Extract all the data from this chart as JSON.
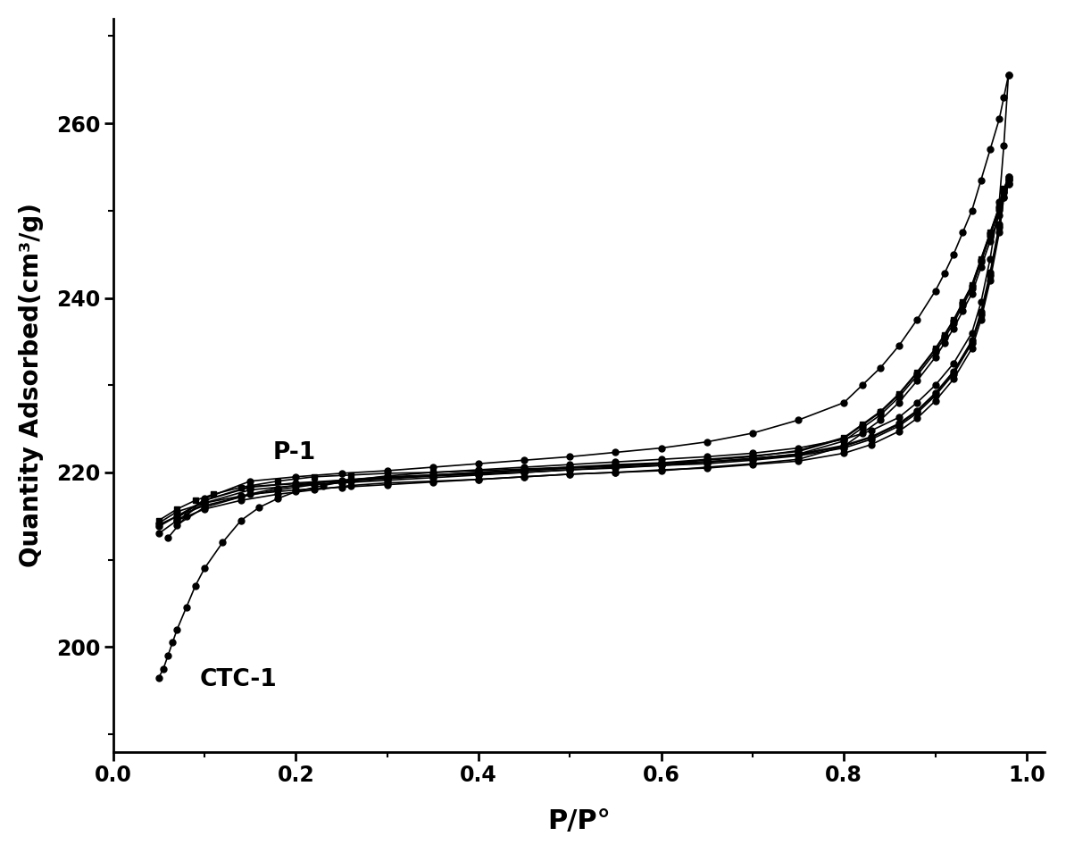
{
  "title": "",
  "xlabel": "P/P°",
  "ylabel": "Quantity Adsorbed(cm³/g)",
  "xlim": [
    0.0,
    1.02
  ],
  "ylim": [
    188,
    272
  ],
  "yticks": [
    200,
    220,
    240,
    260
  ],
  "xticks": [
    0.0,
    0.2,
    0.4,
    0.6,
    0.8,
    1.0
  ],
  "background_color": "#ffffff",
  "line_color": "#000000",
  "label_P1": "P-1",
  "label_CTC1": "CTC-1",
  "P1_x": [
    0.05,
    0.07,
    0.09,
    0.11,
    0.14,
    0.18,
    0.22,
    0.26,
    0.3,
    0.35,
    0.4,
    0.45,
    0.5,
    0.55,
    0.6,
    0.65,
    0.7,
    0.75,
    0.8,
    0.83,
    0.86,
    0.88,
    0.9,
    0.92,
    0.94,
    0.95,
    0.96,
    0.97,
    0.975,
    0.98
  ],
  "P1_y": [
    214.5,
    215.8,
    216.8,
    217.5,
    218.3,
    219.0,
    219.5,
    219.7,
    219.9,
    220.0,
    220.2,
    220.4,
    220.6,
    220.8,
    221.0,
    221.2,
    221.5,
    222.0,
    223.0,
    224.0,
    225.5,
    227.0,
    229.0,
    231.5,
    235.0,
    238.0,
    242.5,
    248.0,
    252.0,
    253.5
  ],
  "P1_des_x": [
    0.98,
    0.975,
    0.97,
    0.96,
    0.95,
    0.94,
    0.93,
    0.92,
    0.91,
    0.9,
    0.88,
    0.86,
    0.84,
    0.82,
    0.8,
    0.75,
    0.7,
    0.65,
    0.6,
    0.55,
    0.5,
    0.45,
    0.4,
    0.35,
    0.3,
    0.25,
    0.2,
    0.15,
    0.1,
    0.07,
    0.05
  ],
  "P1_des_y": [
    253.5,
    252.5,
    250.5,
    247.5,
    244.5,
    241.5,
    239.5,
    237.5,
    235.8,
    234.2,
    231.5,
    229.0,
    227.0,
    225.5,
    224.0,
    222.5,
    221.8,
    221.4,
    221.0,
    220.8,
    220.5,
    220.2,
    219.9,
    219.6,
    219.3,
    219.0,
    218.7,
    218.4,
    216.8,
    215.0,
    214.0
  ],
  "CTC1_x": [
    0.05,
    0.055,
    0.06,
    0.065,
    0.07,
    0.08,
    0.09,
    0.1,
    0.12,
    0.14,
    0.16,
    0.18,
    0.2,
    0.23,
    0.26,
    0.3,
    0.35,
    0.4,
    0.45,
    0.5,
    0.55,
    0.6,
    0.65,
    0.7,
    0.75,
    0.8,
    0.83,
    0.86,
    0.88,
    0.9,
    0.92,
    0.94,
    0.95,
    0.96,
    0.97,
    0.975,
    0.98
  ],
  "CTC1_y": [
    196.5,
    197.5,
    199.0,
    200.5,
    202.0,
    204.5,
    207.0,
    209.0,
    212.0,
    214.5,
    216.0,
    217.0,
    217.8,
    218.5,
    219.1,
    219.6,
    220.0,
    220.3,
    220.6,
    220.9,
    221.2,
    221.5,
    221.8,
    222.2,
    222.8,
    223.8,
    224.8,
    226.3,
    228.0,
    230.0,
    232.5,
    236.0,
    239.5,
    244.5,
    251.0,
    257.5,
    265.5
  ],
  "CTC1_des_x": [
    0.98,
    0.975,
    0.97,
    0.96,
    0.95,
    0.94,
    0.93,
    0.92,
    0.91,
    0.9,
    0.88,
    0.86,
    0.84,
    0.82,
    0.8,
    0.75,
    0.7,
    0.65,
    0.6,
    0.55,
    0.5,
    0.45,
    0.4,
    0.35,
    0.3,
    0.25,
    0.2,
    0.15,
    0.1,
    0.08,
    0.06
  ],
  "CTC1_des_y": [
    265.5,
    263.0,
    260.5,
    257.0,
    253.5,
    250.0,
    247.5,
    245.0,
    242.8,
    240.8,
    237.5,
    234.5,
    232.0,
    230.0,
    228.0,
    226.0,
    224.5,
    223.5,
    222.8,
    222.3,
    221.8,
    221.4,
    221.0,
    220.6,
    220.2,
    219.9,
    219.5,
    219.0,
    217.0,
    215.0,
    212.5
  ],
  "mid_curves": [
    {
      "x": [
        0.05,
        0.07,
        0.1,
        0.14,
        0.18,
        0.22,
        0.26,
        0.3,
        0.35,
        0.4,
        0.45,
        0.5,
        0.55,
        0.6,
        0.65,
        0.7,
        0.75,
        0.8,
        0.83,
        0.86,
        0.88,
        0.9,
        0.92,
        0.94,
        0.95,
        0.96,
        0.97,
        0.975,
        0.98
      ],
      "y": [
        213.0,
        214.5,
        215.8,
        216.8,
        217.5,
        218.0,
        218.5,
        218.8,
        219.0,
        219.2,
        219.5,
        219.8,
        220.0,
        220.3,
        220.5,
        220.9,
        221.3,
        222.2,
        223.2,
        224.7,
        226.2,
        228.2,
        230.7,
        234.2,
        237.5,
        242.0,
        247.5,
        251.5,
        253.0
      ],
      "des_x": [
        0.98,
        0.975,
        0.97,
        0.96,
        0.95,
        0.94,
        0.93,
        0.92,
        0.91,
        0.9,
        0.88,
        0.86,
        0.84,
        0.82,
        0.8,
        0.75,
        0.7,
        0.65,
        0.6,
        0.55,
        0.5,
        0.45,
        0.4,
        0.35,
        0.3,
        0.25,
        0.2,
        0.15,
        0.1,
        0.07
      ],
      "des_y": [
        253.0,
        251.5,
        249.5,
        246.5,
        243.5,
        240.5,
        238.5,
        236.5,
        234.8,
        233.2,
        230.5,
        228.0,
        226.0,
        224.5,
        223.0,
        221.5,
        221.0,
        220.6,
        220.2,
        220.0,
        219.8,
        219.5,
        219.2,
        218.9,
        218.6,
        218.3,
        218.0,
        217.5,
        216.0,
        214.0
      ]
    },
    {
      "x": [
        0.05,
        0.07,
        0.1,
        0.14,
        0.18,
        0.22,
        0.26,
        0.3,
        0.35,
        0.4,
        0.45,
        0.5,
        0.55,
        0.6,
        0.65,
        0.7,
        0.75,
        0.8,
        0.83,
        0.86,
        0.88,
        0.9,
        0.92,
        0.94,
        0.95,
        0.96,
        0.97,
        0.975,
        0.98
      ],
      "y": [
        213.8,
        215.0,
        216.2,
        217.2,
        218.0,
        218.6,
        219.0,
        219.3,
        219.6,
        219.8,
        220.0,
        220.3,
        220.5,
        220.8,
        221.0,
        221.4,
        221.9,
        222.8,
        223.8,
        225.3,
        226.8,
        228.8,
        231.3,
        234.8,
        238.1,
        242.6,
        248.1,
        252.1,
        253.6
      ],
      "des_x": [
        0.98,
        0.975,
        0.97,
        0.96,
        0.95,
        0.94,
        0.93,
        0.92,
        0.91,
        0.9,
        0.88,
        0.86,
        0.84,
        0.82,
        0.8,
        0.75,
        0.7,
        0.65,
        0.6,
        0.55,
        0.5,
        0.45,
        0.4,
        0.35,
        0.3,
        0.25,
        0.2,
        0.15,
        0.1,
        0.07
      ],
      "des_y": [
        253.6,
        252.1,
        250.1,
        247.1,
        244.1,
        241.1,
        239.1,
        237.1,
        235.4,
        233.8,
        231.1,
        228.6,
        226.6,
        225.1,
        223.6,
        222.1,
        221.6,
        221.2,
        220.8,
        220.6,
        220.3,
        220.0,
        219.7,
        219.4,
        219.1,
        218.8,
        218.5,
        218.0,
        216.5,
        214.5
      ]
    },
    {
      "x": [
        0.05,
        0.07,
        0.1,
        0.14,
        0.18,
        0.22,
        0.26,
        0.3,
        0.35,
        0.4,
        0.45,
        0.5,
        0.55,
        0.6,
        0.65,
        0.7,
        0.75,
        0.8,
        0.83,
        0.86,
        0.88,
        0.9,
        0.92,
        0.94,
        0.95,
        0.96,
        0.97,
        0.975,
        0.98
      ],
      "y": [
        214.2,
        215.5,
        216.5,
        217.3,
        218.2,
        218.8,
        219.2,
        219.5,
        219.7,
        220.0,
        220.2,
        220.5,
        220.7,
        221.0,
        221.2,
        221.6,
        222.1,
        223.1,
        224.1,
        225.6,
        227.1,
        229.1,
        231.6,
        235.1,
        238.4,
        242.9,
        248.4,
        252.4,
        253.9
      ],
      "des_x": [
        0.98,
        0.975,
        0.97,
        0.96,
        0.95,
        0.94,
        0.93,
        0.92,
        0.91,
        0.9,
        0.88,
        0.86,
        0.84,
        0.82,
        0.8,
        0.75,
        0.7,
        0.65,
        0.6,
        0.55,
        0.5,
        0.45,
        0.4,
        0.35,
        0.3,
        0.25,
        0.2,
        0.15,
        0.1,
        0.07
      ],
      "des_y": [
        253.9,
        252.4,
        250.4,
        247.4,
        244.4,
        241.4,
        239.4,
        237.4,
        235.7,
        234.1,
        231.4,
        228.9,
        226.9,
        225.4,
        223.9,
        222.4,
        221.9,
        221.5,
        221.1,
        220.9,
        220.6,
        220.3,
        220.0,
        219.7,
        219.4,
        219.1,
        218.8,
        218.3,
        216.8,
        214.8
      ]
    }
  ]
}
